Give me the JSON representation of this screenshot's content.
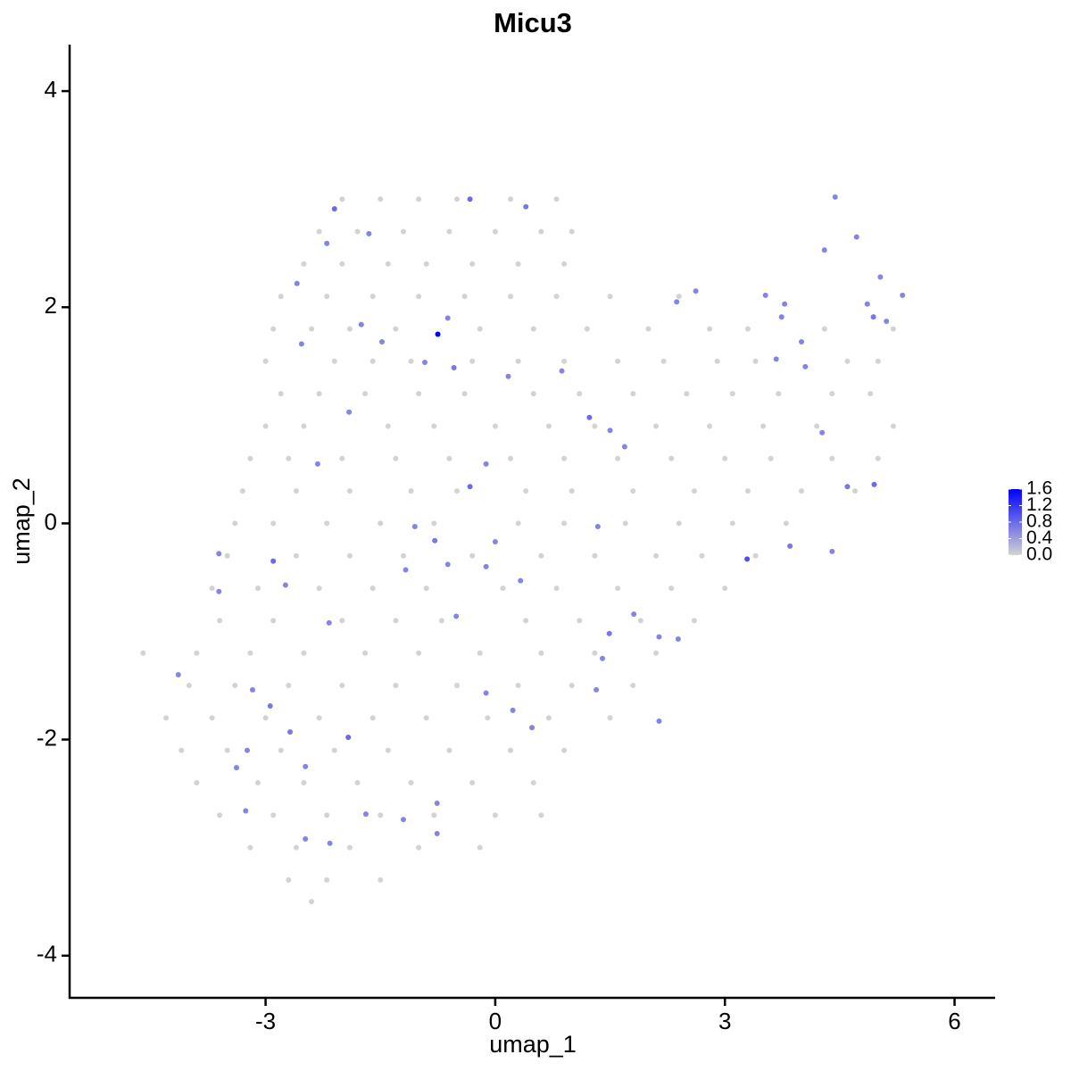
{
  "chart_data": {
    "type": "scatter",
    "title": "Micu3",
    "xlabel": "umap_1",
    "ylabel": "umap_2",
    "xlim": [
      -5.56,
      6.53
    ],
    "ylim": [
      -4.39,
      4.43
    ],
    "xticks": [
      -3,
      0,
      3,
      6
    ],
    "yticks": [
      -4,
      -2,
      0,
      2,
      4
    ],
    "x": [
      -1.0,
      -0.5,
      0.2,
      0.8,
      -1.5,
      -2.0,
      -2.3,
      -1.8,
      -1.2,
      -0.6,
      0.0,
      0.6,
      1.0,
      -2.5,
      -2.0,
      -1.4,
      -0.9,
      -0.3,
      0.3,
      0.9,
      -2.8,
      -2.2,
      -1.6,
      -1.0,
      -0.4,
      0.2,
      0.8,
      1.5,
      2.4,
      -2.9,
      -2.4,
      -1.9,
      -1.3,
      -0.2,
      0.5,
      1.2,
      2.0,
      2.8,
      3.3,
      4.3,
      5.2,
      -3.0,
      -2.1,
      -1.6,
      -1.1,
      -0.3,
      0.3,
      0.9,
      1.6,
      2.2,
      2.9,
      3.4,
      4.6,
      5.0,
      -2.8,
      -2.3,
      -1.7,
      -1.0,
      -0.4,
      0.5,
      1.1,
      1.8,
      2.5,
      3.1,
      3.7,
      4.4,
      4.9,
      -3.0,
      -2.5,
      -1.4,
      -0.8,
      0.0,
      0.7,
      1.3,
      2.1,
      2.8,
      3.5,
      4.2,
      5.2,
      -3.2,
      -2.7,
      -2.0,
      -1.3,
      -0.6,
      0.2,
      0.9,
      1.6,
      2.3,
      3.0,
      3.6,
      4.4,
      5.0,
      -3.3,
      -2.6,
      -1.9,
      -1.1,
      -0.5,
      0.4,
      1.0,
      1.8,
      2.6,
      3.3,
      4.0,
      4.7,
      -3.4,
      -2.9,
      -2.2,
      -1.5,
      -0.8,
      0.3,
      0.9,
      1.7,
      2.4,
      3.1,
      3.8,
      -3.5,
      -2.6,
      -1.9,
      -1.2,
      -0.3,
      0.6,
      1.3,
      2.1,
      2.7,
      3.4,
      -3.7,
      -3.1,
      -2.3,
      -1.6,
      -0.9,
      0.1,
      0.8,
      1.6,
      2.3,
      3.0,
      -3.6,
      -2.9,
      -2.0,
      -1.3,
      -0.7,
      0.4,
      1.1,
      1.9,
      2.6,
      -4.6,
      -3.9,
      -3.2,
      -2.5,
      -1.7,
      -1.0,
      -0.2,
      0.6,
      1.3,
      2.1,
      -4.0,
      -3.4,
      -2.7,
      -2.0,
      -1.3,
      -0.5,
      0.3,
      1.0,
      1.8,
      -4.3,
      -3.7,
      -3.0,
      -2.3,
      -1.6,
      -0.9,
      -0.1,
      0.7,
      1.5,
      -4.1,
      -3.5,
      -2.8,
      -2.1,
      -1.4,
      -0.6,
      0.2,
      0.9,
      -3.9,
      -3.1,
      -2.5,
      -1.8,
      -1.1,
      -0.3,
      0.5,
      -3.6,
      -2.9,
      -2.2,
      -1.5,
      -0.8,
      0.0,
      0.6,
      -3.2,
      -2.6,
      -1.9,
      -1.0,
      -0.2,
      -2.7,
      -2.2,
      -1.5,
      -2.4,
      -0.75,
      -2.1,
      -0.33,
      0.4,
      -1.65,
      -2.2,
      -2.59,
      -2.53,
      -1.75,
      -1.48,
      -0.92,
      -0.54,
      -0.62,
      0.17,
      1.23,
      1.5,
      -0.12,
      -0.33,
      -1.91,
      -2.32,
      -3.61,
      -3.61,
      -2.9,
      -2.74,
      -2.17,
      -4.14,
      -2.94,
      -3.17,
      -3.24,
      -2.68,
      -1.92,
      -3.38,
      -2.48,
      -3.26,
      -2.48,
      -2.16,
      -1.69,
      -1.2,
      -0.76,
      -0.76,
      -1.05,
      -0.79,
      -1.17,
      -0.62,
      -0.12,
      0,
      0.33,
      -0.51,
      -0.12,
      0.48,
      0.23,
      1.34,
      1.49,
      1.4,
      1.32,
      1.81,
      2.14,
      2.39,
      2.14,
      3.29,
      3.85,
      4.4,
      4.6,
      4.95,
      4.27,
      4.05,
      3.67,
      4.0,
      3.74,
      3.78,
      3.53,
      2.62,
      2.37,
      4.3,
      4.44,
      4.72,
      4.86,
      5.03,
      5.32,
      5.11,
      4.94,
      0.87,
      1.69
    ],
    "y": [
      3.0,
      3.0,
      3.0,
      3.0,
      3.0,
      3.0,
      2.7,
      2.7,
      2.7,
      2.7,
      2.7,
      2.7,
      2.7,
      2.4,
      2.4,
      2.4,
      2.4,
      2.4,
      2.4,
      2.4,
      2.1,
      2.1,
      2.1,
      2.1,
      2.1,
      2.1,
      2.1,
      2.1,
      2.1,
      1.8,
      1.8,
      1.8,
      1.8,
      1.8,
      1.8,
      1.8,
      1.8,
      1.8,
      1.8,
      1.8,
      1.8,
      1.5,
      1.5,
      1.5,
      1.5,
      1.5,
      1.5,
      1.5,
      1.5,
      1.5,
      1.5,
      1.5,
      1.5,
      1.5,
      1.2,
      1.2,
      1.2,
      1.2,
      1.2,
      1.2,
      1.2,
      1.2,
      1.2,
      1.2,
      1.2,
      1.2,
      1.2,
      0.9,
      0.9,
      0.9,
      0.9,
      0.9,
      0.9,
      0.9,
      0.9,
      0.9,
      0.9,
      0.9,
      0.9,
      0.6,
      0.6,
      0.6,
      0.6,
      0.6,
      0.6,
      0.6,
      0.6,
      0.6,
      0.6,
      0.6,
      0.6,
      0.6,
      0.3,
      0.3,
      0.3,
      0.3,
      0.3,
      0.3,
      0.3,
      0.3,
      0.3,
      0.3,
      0.3,
      0.3,
      0.0,
      0.0,
      0.0,
      0.0,
      0.0,
      0.0,
      0.0,
      0.0,
      0.0,
      0.0,
      0.0,
      -0.3,
      -0.3,
      -0.3,
      -0.3,
      -0.3,
      -0.3,
      -0.3,
      -0.3,
      -0.3,
      -0.3,
      -0.6,
      -0.6,
      -0.6,
      -0.6,
      -0.6,
      -0.6,
      -0.6,
      -0.6,
      -0.6,
      -0.6,
      -0.9,
      -0.9,
      -0.9,
      -0.9,
      -0.9,
      -0.9,
      -0.9,
      -0.9,
      -0.9,
      -1.2,
      -1.2,
      -1.2,
      -1.2,
      -1.2,
      -1.2,
      -1.2,
      -1.2,
      -1.2,
      -1.2,
      -1.5,
      -1.5,
      -1.5,
      -1.5,
      -1.5,
      -1.5,
      -1.5,
      -1.5,
      -1.5,
      -1.8,
      -1.8,
      -1.8,
      -1.8,
      -1.8,
      -1.8,
      -1.8,
      -1.8,
      -1.8,
      -2.1,
      -2.1,
      -2.1,
      -2.1,
      -2.1,
      -2.1,
      -2.1,
      -2.1,
      -2.4,
      -2.4,
      -2.4,
      -2.4,
      -2.4,
      -2.4,
      -2.4,
      -2.7,
      -2.7,
      -2.7,
      -2.7,
      -2.7,
      -2.7,
      -2.7,
      -3.0,
      -3.0,
      -3.0,
      -3.0,
      -3.0,
      -3.3,
      -3.3,
      -3.3,
      -3.5,
      1.75,
      2.91,
      3.0,
      2.93,
      2.68,
      2.59,
      2.22,
      1.66,
      1.84,
      1.68,
      1.49,
      1.44,
      1.9,
      1.36,
      0.98,
      0.86,
      0.55,
      0.34,
      1.03,
      0.55,
      -0.28,
      -0.63,
      -0.35,
      -0.57,
      -0.92,
      -1.4,
      -1.69,
      -1.54,
      -2.1,
      -1.93,
      -1.98,
      -2.26,
      -2.25,
      -2.66,
      -2.92,
      -2.96,
      -2.69,
      -2.74,
      -2.59,
      -2.87,
      -0.03,
      -0.16,
      -0.43,
      -0.38,
      -0.4,
      -0.17,
      -0.53,
      -0.86,
      -1.57,
      -1.89,
      -1.73,
      -0.03,
      -1.02,
      -1.25,
      -1.54,
      -0.84,
      -1.05,
      -1.07,
      -1.83,
      -0.33,
      -0.21,
      -0.26,
      0.34,
      0.36,
      0.84,
      1.45,
      1.52,
      1.68,
      1.91,
      2.03,
      2.11,
      2.15,
      2.05,
      2.53,
      3.02,
      2.65,
      2.03,
      2.28,
      2.11,
      1.87,
      1.91,
      1.41,
      0.71
    ],
    "values": [
      0,
      0,
      0,
      0,
      0,
      0,
      0,
      0,
      0,
      0,
      0,
      0,
      0,
      0,
      0,
      0,
      0,
      0,
      0,
      0,
      0,
      0,
      0,
      0,
      0,
      0,
      0,
      0,
      0,
      0,
      0,
      0,
      0,
      0,
      0,
      0,
      0,
      0,
      0,
      0,
      0,
      0,
      0,
      0,
      0,
      0,
      0,
      0,
      0,
      0,
      0,
      0,
      0,
      0,
      0,
      0,
      0,
      0,
      0,
      0,
      0,
      0,
      0,
      0,
      0,
      0,
      0,
      0,
      0,
      0,
      0,
      0,
      0,
      0,
      0,
      0,
      0,
      0,
      0,
      0,
      0,
      0,
      0,
      0,
      0,
      0,
      0,
      0,
      0,
      0,
      0,
      0,
      0,
      0,
      0,
      0,
      0,
      0,
      0,
      0,
      0,
      0,
      0,
      0,
      0,
      0,
      0,
      0,
      0,
      0,
      0,
      0,
      0,
      0,
      0,
      0,
      0,
      0,
      0,
      0,
      0,
      0,
      0,
      0,
      0,
      0,
      0,
      0,
      0,
      0,
      0,
      0,
      0,
      0,
      0,
      0,
      0,
      0,
      0,
      0,
      0,
      0,
      0,
      0,
      0,
      0,
      0,
      0,
      0,
      0,
      0,
      0,
      0,
      0,
      0,
      0,
      0,
      0,
      0,
      0,
      0,
      0,
      0,
      0,
      0,
      0,
      0,
      0,
      0,
      0,
      0,
      0,
      0,
      0,
      0,
      0,
      0,
      0,
      0,
      0,
      0,
      0,
      0,
      0,
      0,
      0,
      0,
      0,
      0,
      0,
      0,
      0,
      0,
      0,
      0,
      0,
      0,
      0,
      0,
      0,
      0,
      0,
      0,
      1.6,
      0.8,
      0.8,
      0.7,
      0.6,
      0.6,
      0.6,
      0.6,
      0.6,
      0.6,
      0.6,
      0.7,
      0.6,
      0.6,
      0.8,
      0.6,
      0.6,
      0.8,
      0.6,
      0.6,
      0.6,
      0.6,
      0.8,
      0.6,
      0.6,
      0.6,
      0.7,
      0.6,
      0.6,
      0.7,
      0.8,
      0.6,
      0.6,
      0.6,
      0.6,
      0.6,
      0.6,
      0.6,
      0.6,
      0.6,
      0.6,
      0.7,
      0.6,
      0.6,
      0.6,
      0.6,
      0.6,
      0.6,
      0.6,
      0.6,
      0.6,
      0.6,
      0.7,
      0.6,
      0.6,
      0.6,
      0.6,
      0.6,
      0.6,
      1.0,
      0.7,
      0.6,
      0.7,
      0.8,
      0.6,
      0.6,
      0.6,
      0.6,
      0.6,
      0.6,
      0.6,
      0.6,
      0.6,
      0.6,
      0.6,
      0.6,
      0.6,
      0.6,
      0.6,
      0.6,
      0.7,
      0.6,
      0.6
    ],
    "colorbar": {
      "lim": [
        0,
        1.6
      ],
      "colors": [
        "#d3d3d3",
        "#0000ff"
      ],
      "ticks": [
        {
          "value": 0,
          "label": "0.0"
        },
        {
          "value": 0.4,
          "label": "0.4"
        },
        {
          "value": 0.8,
          "label": "0.8"
        },
        {
          "value": 1.2,
          "label": "1.2"
        },
        {
          "value": 1.6,
          "label": "1.6"
        }
      ]
    },
    "legend": "right",
    "grid": false
  }
}
